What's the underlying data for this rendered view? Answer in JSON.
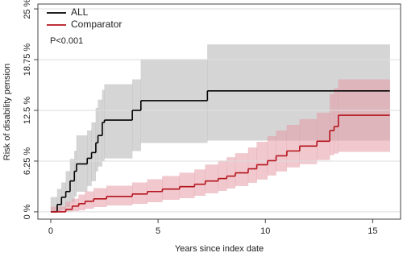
{
  "chart_data": {
    "type": "step",
    "x_label": "Years since index date",
    "y_label": "Risk of disability pension",
    "annotation": "P<0.001",
    "xlim": [
      -0.6,
      16.3
    ],
    "ylim": [
      -0.9,
      25.6
    ],
    "xticks": [
      0,
      5,
      10,
      15
    ],
    "yticks": [
      {
        "value": 0,
        "label": "0 %"
      },
      {
        "value": 6.25,
        "label": "6.25 %"
      },
      {
        "value": 12.5,
        "label": "12.5 %"
      },
      {
        "value": 18.75,
        "label": "18.75 %"
      },
      {
        "value": 25,
        "label": "25 %"
      }
    ],
    "grid": true,
    "legend": "upper left",
    "series": [
      {
        "name": "ALL",
        "color": "#000000",
        "band_color": "#b3b3b3",
        "x": [
          0,
          0.3,
          0.5,
          0.7,
          0.9,
          1.1,
          1.2,
          1.7,
          1.9,
          2.1,
          2.2,
          2.4,
          2.5,
          3.8,
          4.2,
          7.3,
          15.8
        ],
        "values": [
          0,
          0.9,
          1.8,
          2.5,
          3.8,
          5.0,
          5.9,
          6.6,
          7.3,
          8.5,
          9.4,
          11.0,
          11.3,
          12.5,
          13.7,
          14.9,
          14.9
        ],
        "upper": [
          1.8,
          2.8,
          3.6,
          5.0,
          6.5,
          7.5,
          9.4,
          10.0,
          11.0,
          12.8,
          13.8,
          15.0,
          15.7,
          16.3,
          18.8,
          20.6,
          20.6
        ],
        "lower": [
          0,
          0,
          0.3,
          0.6,
          1.2,
          1.9,
          2.5,
          3.2,
          3.8,
          5.0,
          5.6,
          6.3,
          6.6,
          7.5,
          8.5,
          8.8,
          8.8
        ]
      },
      {
        "name": "Comparator",
        "color": "#b5121b",
        "band_color": "#e39aa6",
        "x": [
          0,
          0.7,
          1.0,
          1.3,
          1.6,
          2.0,
          2.6,
          3.8,
          4.5,
          5.2,
          6.0,
          6.7,
          7.2,
          7.8,
          8.2,
          8.6,
          9.2,
          9.6,
          10.1,
          10.5,
          11.0,
          11.6,
          12.4,
          13.0,
          13.2,
          13.4,
          15.8
        ],
        "values": [
          0,
          0.3,
          0.7,
          1.0,
          1.3,
          1.6,
          1.9,
          2.2,
          2.5,
          2.8,
          3.1,
          3.4,
          3.8,
          4.1,
          4.4,
          4.8,
          5.3,
          5.8,
          6.3,
          6.9,
          7.5,
          8.1,
          8.7,
          10.0,
          10.5,
          11.9,
          11.9
        ],
        "upper": [
          0.6,
          1.2,
          1.6,
          2.1,
          2.5,
          2.9,
          3.2,
          3.6,
          4.0,
          4.4,
          4.8,
          5.2,
          5.8,
          6.3,
          6.7,
          7.2,
          7.9,
          8.6,
          9.3,
          10.0,
          10.7,
          11.4,
          12.2,
          14.5,
          15.2,
          16.3,
          16.3
        ],
        "lower": [
          0,
          0,
          0.1,
          0.2,
          0.4,
          0.6,
          0.8,
          1.0,
          1.2,
          1.5,
          1.7,
          2.0,
          2.3,
          2.6,
          2.9,
          3.2,
          3.6,
          4.0,
          4.5,
          5.0,
          5.5,
          5.9,
          6.4,
          7.0,
          7.2,
          7.4,
          7.4
        ]
      }
    ]
  }
}
